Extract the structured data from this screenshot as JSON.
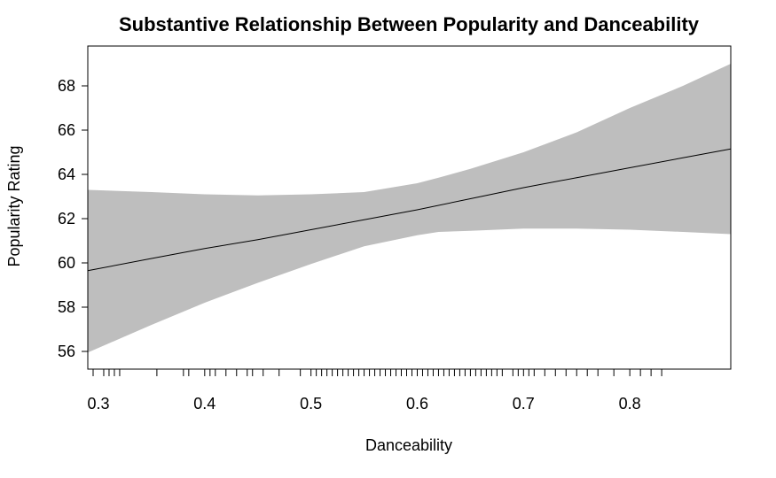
{
  "chart_data": {
    "type": "line",
    "title": "Substantive Relationship Between Popularity and Danceability",
    "xlabel": "Danceability",
    "ylabel": "Popularity Rating",
    "xlim": [
      0.29,
      0.895
    ],
    "ylim": [
      55.2,
      69.8
    ],
    "x_ticks": [
      0.3,
      0.4,
      0.5,
      0.6,
      0.7,
      0.8
    ],
    "x_tick_labels": [
      "0.3",
      "0.4",
      "0.5",
      "0.6",
      "0.7",
      "0.8"
    ],
    "y_ticks": [
      56,
      58,
      60,
      62,
      64,
      66,
      68
    ],
    "y_tick_labels": [
      "56",
      "58",
      "60",
      "62",
      "64",
      "66",
      "68"
    ],
    "grid": false,
    "fit_color": "#000000",
    "band_color": "#bebebe",
    "fit": {
      "x": [
        0.29,
        0.35,
        0.4,
        0.45,
        0.5,
        0.55,
        0.6,
        0.65,
        0.7,
        0.75,
        0.8,
        0.85,
        0.895
      ],
      "y": [
        59.65,
        60.2,
        60.65,
        61.05,
        61.5,
        61.95,
        62.4,
        62.9,
        63.4,
        63.85,
        64.3,
        64.75,
        65.15
      ]
    },
    "confidence_band": {
      "x": [
        0.29,
        0.35,
        0.4,
        0.45,
        0.5,
        0.55,
        0.6,
        0.62,
        0.65,
        0.7,
        0.75,
        0.8,
        0.85,
        0.895
      ],
      "upper": [
        63.3,
        63.2,
        63.1,
        63.05,
        63.1,
        63.2,
        63.6,
        63.85,
        64.25,
        65.0,
        65.9,
        67.0,
        68.0,
        69.0
      ],
      "lower": [
        55.95,
        57.2,
        58.2,
        59.1,
        59.95,
        60.75,
        61.25,
        61.4,
        61.45,
        61.55,
        61.55,
        61.5,
        61.4,
        61.3
      ]
    },
    "rug_x": [
      0.295,
      0.305,
      0.31,
      0.315,
      0.32,
      0.355,
      0.38,
      0.385,
      0.4,
      0.405,
      0.41,
      0.42,
      0.43,
      0.44,
      0.445,
      0.455,
      0.47,
      0.49,
      0.5,
      0.505,
      0.51,
      0.515,
      0.52,
      0.525,
      0.53,
      0.535,
      0.54,
      0.545,
      0.55,
      0.555,
      0.56,
      0.565,
      0.57,
      0.575,
      0.58,
      0.585,
      0.59,
      0.595,
      0.6,
      0.605,
      0.61,
      0.615,
      0.62,
      0.625,
      0.63,
      0.635,
      0.64,
      0.645,
      0.65,
      0.655,
      0.66,
      0.665,
      0.67,
      0.675,
      0.68,
      0.69,
      0.695,
      0.7,
      0.705,
      0.71,
      0.72,
      0.73,
      0.74,
      0.75,
      0.76,
      0.77,
      0.785,
      0.8,
      0.81,
      0.82,
      0.83
    ]
  }
}
